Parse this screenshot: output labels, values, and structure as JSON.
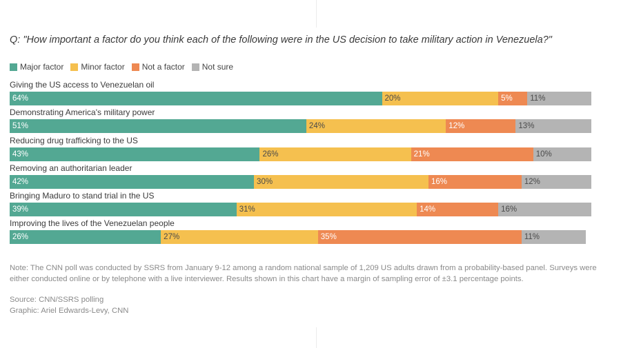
{
  "title": "Q: \"How important a factor do you think each of the following were in the US decision to take military action in Venezuela?\"",
  "legend": [
    {
      "label": "Major factor",
      "color": "#53a893"
    },
    {
      "label": "Minor factor",
      "color": "#f5c04f"
    },
    {
      "label": "Not a factor",
      "color": "#ee8952"
    },
    {
      "label": "Not sure",
      "color": "#b4b4b4"
    }
  ],
  "chart_data": {
    "type": "bar",
    "orientation": "horizontal-stacked",
    "title": "Q: \"How important a factor do you think each of the following were in the US decision to take military action in Venezuela?\"",
    "categories": [
      "Giving the US access to Venezuelan oil",
      "Demonstrating America's military power",
      "Reducing drug trafficking to the US",
      "Removing an authoritarian leader",
      "Bringing Maduro to stand trial in the US",
      "Improving the lives of the Venezuelan people"
    ],
    "series": [
      {
        "name": "Major factor",
        "values": [
          64,
          51,
          43,
          42,
          39,
          26
        ]
      },
      {
        "name": "Minor factor",
        "values": [
          20,
          24,
          26,
          30,
          31,
          27
        ]
      },
      {
        "name": "Not a factor",
        "values": [
          5,
          12,
          21,
          16,
          14,
          35
        ]
      },
      {
        "name": "Not sure",
        "values": [
          11,
          13,
          10,
          12,
          16,
          11
        ]
      }
    ],
    "value_suffix": "%",
    "xlim": [
      0,
      100
    ]
  },
  "note": "Note: The CNN poll was conducted by SSRS from January 9-12 among a random national sample of 1,209 US adults drawn from a probability-based panel. Surveys were either conducted online or by telephone with a live interviewer. Results shown in this chart have a margin of sampling error of ±3.1 percentage points.",
  "source": "Source: CNN/SSRS polling",
  "graphic": "Graphic: Ariel Edwards-Levy, CNN"
}
